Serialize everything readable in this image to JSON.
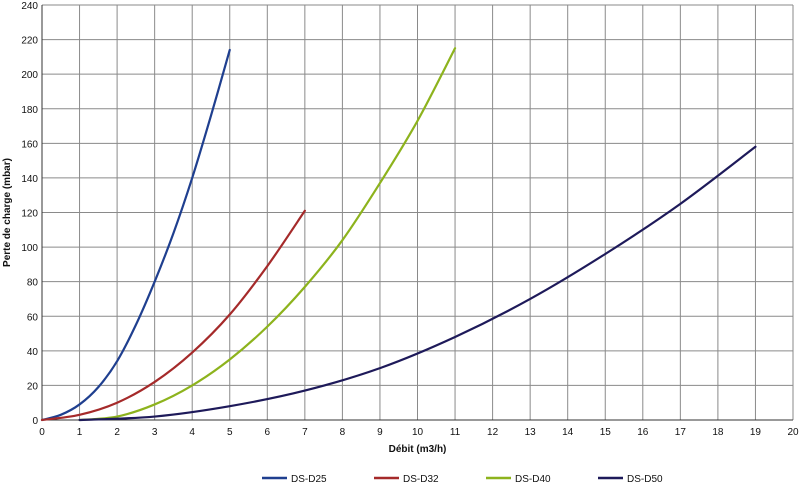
{
  "chart_data": {
    "type": "line",
    "title": "",
    "xlabel": "Débit (m3/h)",
    "ylabel": "Perte de charge (mbar)",
    "xlim": [
      0,
      20
    ],
    "ylim": [
      0,
      240
    ],
    "x_ticks": [
      0,
      1,
      2,
      3,
      4,
      5,
      6,
      7,
      8,
      9,
      10,
      11,
      12,
      13,
      14,
      15,
      16,
      17,
      18,
      19,
      20
    ],
    "y_ticks": [
      0,
      20,
      40,
      60,
      80,
      100,
      120,
      140,
      160,
      180,
      200,
      220,
      240
    ],
    "grid": true,
    "legend_position": "bottom",
    "series": [
      {
        "name": "DS-D25",
        "color": "#1f3f8f",
        "x": [
          0,
          0.5,
          1,
          1.5,
          2,
          2.5,
          3,
          3.5,
          4,
          4.5,
          5
        ],
        "y": [
          0,
          3,
          9,
          19,
          34,
          55,
          80,
          108,
          140,
          176,
          214
        ]
      },
      {
        "name": "DS-D32",
        "color": "#a52a2a",
        "x": [
          0,
          1,
          2,
          3,
          4,
          5,
          6,
          7
        ],
        "y": [
          0,
          3,
          10,
          22,
          39,
          61,
          89,
          121
        ]
      },
      {
        "name": "DS-D40",
        "color": "#8db31d",
        "x": [
          1,
          2,
          3,
          4,
          5,
          6,
          7,
          8,
          9,
          10,
          11
        ],
        "y": [
          0,
          2,
          9,
          20,
          35,
          54,
          77,
          104,
          137,
          173,
          215
        ]
      },
      {
        "name": "DS-D50",
        "color": "#1e1a5a",
        "x": [
          1,
          3,
          5,
          7,
          9,
          11,
          13,
          15,
          17,
          19
        ],
        "y": [
          0,
          2,
          8,
          17,
          30,
          48,
          70,
          96,
          125,
          158
        ]
      }
    ]
  }
}
